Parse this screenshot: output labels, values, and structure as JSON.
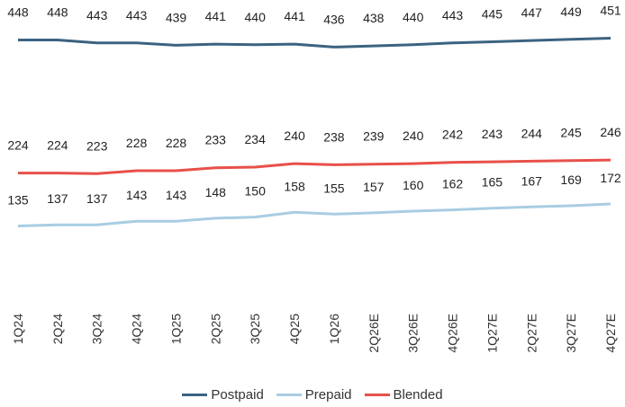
{
  "chart_data": {
    "type": "line",
    "categories": [
      "1Q24",
      "2Q24",
      "3Q24",
      "4Q24",
      "1Q25",
      "2Q25",
      "3Q25",
      "4Q25",
      "1Q26",
      "2Q26E",
      "3Q26E",
      "4Q26E",
      "1Q27E",
      "2Q27E",
      "3Q27E",
      "4Q27E"
    ],
    "series": [
      {
        "name": "Postpaid",
        "color": "#3b6382",
        "values": [
          448,
          448,
          443,
          443,
          439,
          441,
          440,
          441,
          436,
          438,
          440,
          443,
          445,
          447,
          449,
          451
        ]
      },
      {
        "name": "Prepaid",
        "color": "#a9cde2",
        "values": [
          135,
          137,
          137,
          143,
          143,
          148,
          150,
          158,
          155,
          157,
          160,
          162,
          165,
          167,
          169,
          172
        ]
      },
      {
        "name": "Blended",
        "color": "#e8504a",
        "values": [
          224,
          224,
          223,
          228,
          228,
          233,
          234,
          240,
          238,
          239,
          240,
          242,
          243,
          244,
          245,
          246
        ]
      }
    ],
    "legend_position": "bottom",
    "grid": false,
    "data_labels": true
  }
}
